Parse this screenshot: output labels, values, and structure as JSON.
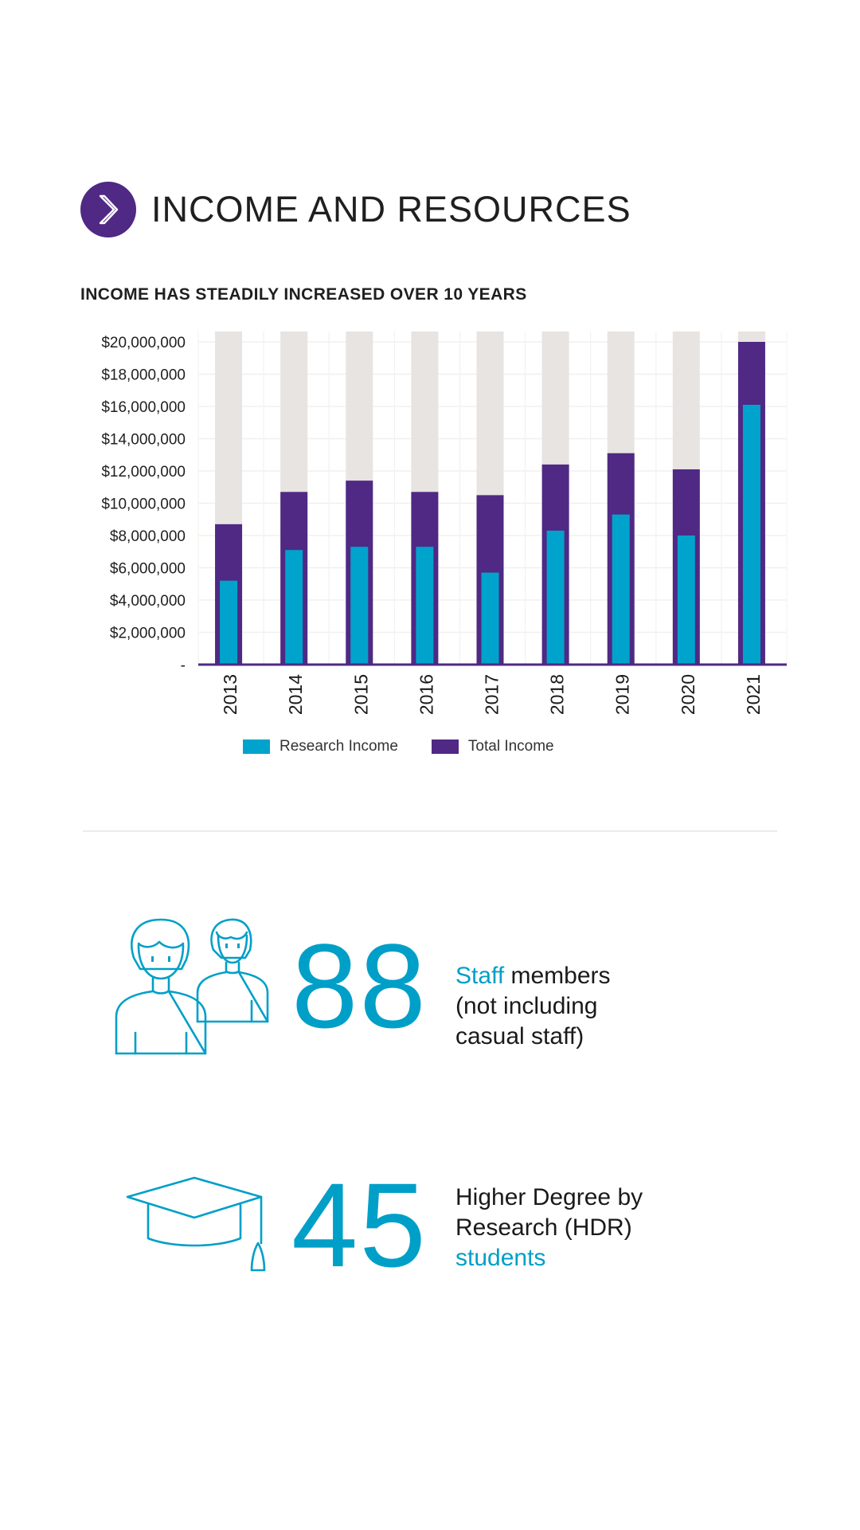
{
  "section": {
    "title": "INCOME AND RESOURCES",
    "icon": "chevron-right-icon",
    "accent_color": "#4f2984"
  },
  "chart_data": {
    "type": "bar",
    "title": "INCOME HAS STEADILY INCREASED OVER 10 YEARS",
    "categories": [
      "2013",
      "2014",
      "2015",
      "2016",
      "2017",
      "2018",
      "2019",
      "2020",
      "2021"
    ],
    "series": [
      {
        "name": "Research Income",
        "color": "#00a3cc",
        "values": [
          5200000,
          7100000,
          7300000,
          7300000,
          5700000,
          8300000,
          9300000,
          8000000,
          16100000
        ]
      },
      {
        "name": "Total Income",
        "color": "#4f2984",
        "values": [
          8700000,
          10700000,
          11400000,
          10700000,
          10500000,
          12400000,
          13100000,
          12100000,
          20000000
        ]
      }
    ],
    "background_color": "#e7e4e1",
    "ylim": [
      0,
      20000000
    ],
    "yticks": [
      {
        "value": 0,
        "label": "-"
      },
      {
        "value": 2000000,
        "label": "$2,000,000"
      },
      {
        "value": 4000000,
        "label": "$4,000,000"
      },
      {
        "value": 6000000,
        "label": "$6,000,000"
      },
      {
        "value": 8000000,
        "label": "$8,000,000"
      },
      {
        "value": 10000000,
        "label": "$10,000,000"
      },
      {
        "value": 12000000,
        "label": "$12,000,000"
      },
      {
        "value": 14000000,
        "label": "$14,000,000"
      },
      {
        "value": 16000000,
        "label": "$16,000,000"
      },
      {
        "value": 18000000,
        "label": "$18,000,000"
      },
      {
        "value": 20000000,
        "label": "$20,000,000"
      }
    ],
    "xlabel": "",
    "ylabel": "",
    "grid": true,
    "legend_position": "bottom"
  },
  "stats": [
    {
      "number": "88",
      "icon": "staff-people-icon",
      "text_accent": "Staff",
      "text_rest_1": " members",
      "text_line2": "(not including",
      "text_line3": "casual staff)"
    },
    {
      "number": "45",
      "icon": "graduation-cap-icon",
      "text_line1": "Higher Degree by",
      "text_line2": "Research (HDR)",
      "text_accent": "students"
    }
  ]
}
